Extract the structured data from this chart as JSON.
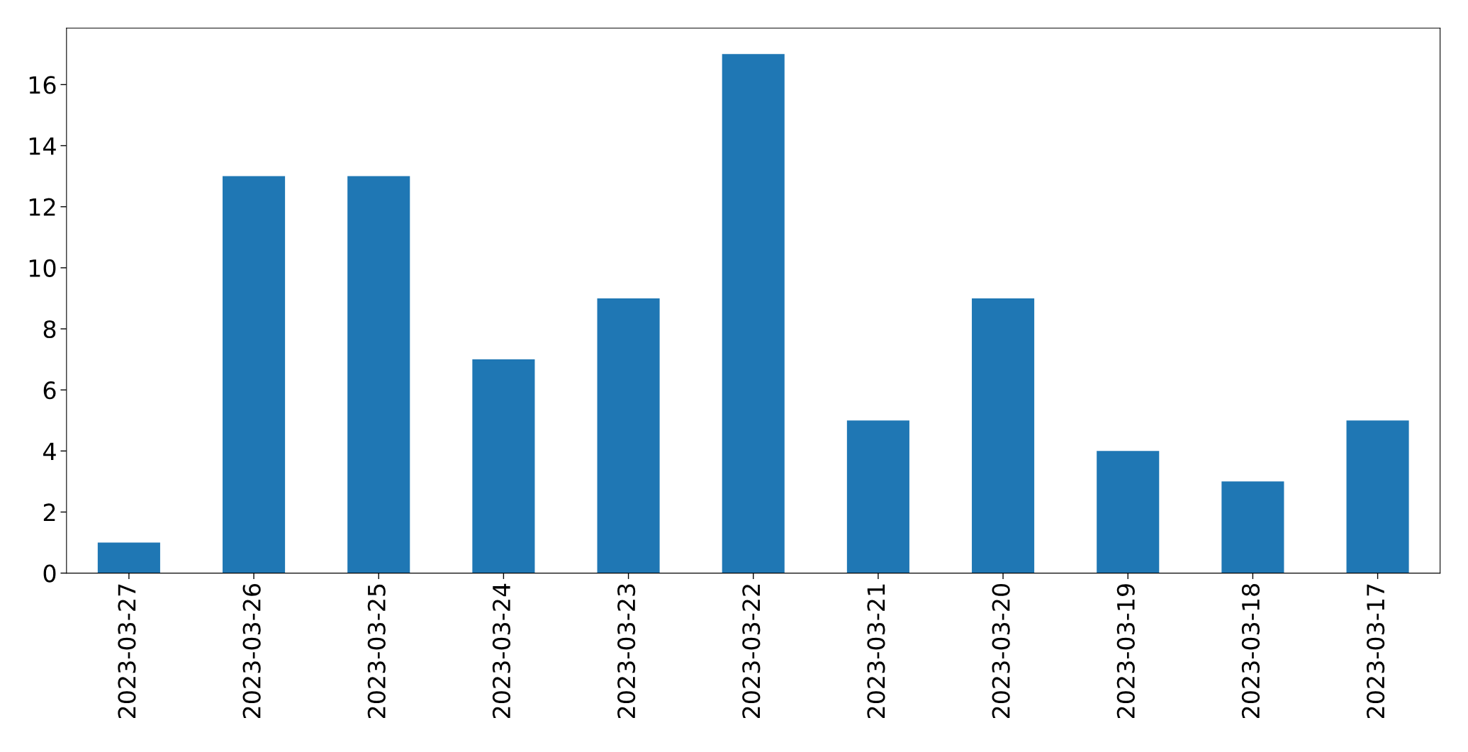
{
  "chart_data": {
    "type": "bar",
    "categories": [
      "2023-03-27",
      "2023-03-26",
      "2023-03-25",
      "2023-03-24",
      "2023-03-23",
      "2023-03-22",
      "2023-03-21",
      "2023-03-20",
      "2023-03-19",
      "2023-03-18",
      "2023-03-17"
    ],
    "values": [
      1,
      13,
      13,
      7,
      9,
      17,
      5,
      9,
      4,
      3,
      5
    ],
    "color": "#1f77b4",
    "ylim": [
      0,
      17.85
    ],
    "yticks": [
      0,
      2,
      4,
      6,
      8,
      10,
      12,
      14,
      16
    ],
    "grid": false,
    "legend": false
  }
}
